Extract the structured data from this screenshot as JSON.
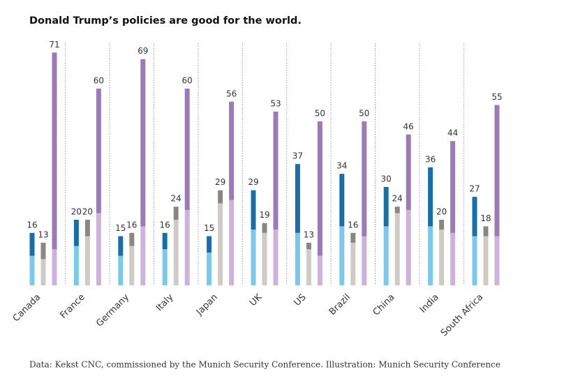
{
  "chart_data": {
    "type": "bar",
    "title": "Donald Trump’s policies are good for the world.",
    "source": "Data: Kekst CNC, commissioned by the Munich Security Conference. Illustration: Munich Security Conference",
    "categories": [
      "Canada",
      "France",
      "Germany",
      "Italy",
      "Japan",
      "UK",
      "US",
      "Brazil",
      "China",
      "India",
      "South Africa"
    ],
    "ylim": [
      0,
      75
    ],
    "series": [
      {
        "color": "#1a6ea8",
        "light_color": "#7cc8ea",
        "values": [
          16,
          20,
          15,
          16,
          15,
          29,
          37,
          34,
          30,
          36,
          27
        ],
        "light_values": [
          9,
          12,
          9,
          11,
          10,
          17,
          16,
          18,
          18,
          18,
          15
        ]
      },
      {
        "color": "#8c8681",
        "light_color": "#cfcac4",
        "values": [
          13,
          20,
          16,
          24,
          29,
          19,
          13,
          16,
          24,
          20,
          18
        ],
        "light_values": [
          8,
          15,
          12,
          20,
          25,
          16,
          11,
          13,
          22,
          17,
          15
        ]
      },
      {
        "color": "#9b7bb5",
        "light_color": "#cdb3db",
        "values": [
          71,
          60,
          69,
          60,
          56,
          53,
          50,
          50,
          46,
          44,
          55
        ],
        "light_values": [
          11,
          22,
          18,
          23,
          26,
          17,
          9,
          15,
          23,
          16,
          15
        ]
      }
    ]
  }
}
